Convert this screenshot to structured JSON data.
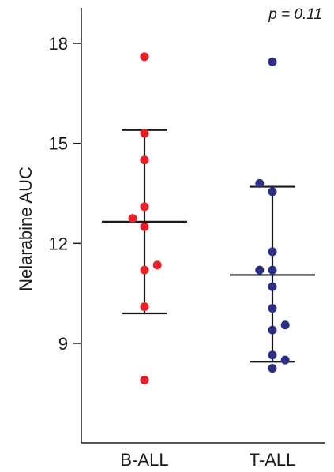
{
  "chart_data": {
    "type": "scatter",
    "title": "",
    "xlabel": "",
    "ylabel": "Nelarabine AUC",
    "ylim": [
      6.5,
      19.0
    ],
    "yticks": [
      9,
      12,
      15,
      18
    ],
    "ytick_labels": [
      "9",
      "12",
      "15",
      "18"
    ],
    "categories": [
      "B-ALL",
      "T-ALL"
    ],
    "annotation": "p = 0.11",
    "grid": false,
    "legend": "none",
    "series": [
      {
        "category": "B-ALL",
        "color": "#e8202a",
        "points": [
          {
            "x": 0.0,
            "y": 17.6
          },
          {
            "x": 0.0,
            "y": 15.3
          },
          {
            "x": 0.0,
            "y": 14.5
          },
          {
            "x": 0.0,
            "y": 13.1
          },
          {
            "x": -0.25,
            "y": 12.75
          },
          {
            "x": 0.0,
            "y": 12.5
          },
          {
            "x": 0.27,
            "y": 11.35
          },
          {
            "x": 0.0,
            "y": 11.2
          },
          {
            "x": 0.0,
            "y": 10.1
          },
          {
            "x": 0.0,
            "y": 7.9
          }
        ],
        "mean": 12.65,
        "sd_low": 9.9,
        "sd_high": 15.4
      },
      {
        "category": "T-ALL",
        "color": "#2b2f86",
        "points": [
          {
            "x": 0.0,
            "y": 17.45
          },
          {
            "x": -0.27,
            "y": 13.8
          },
          {
            "x": 0.0,
            "y": 13.55
          },
          {
            "x": 0.0,
            "y": 11.75
          },
          {
            "x": -0.27,
            "y": 11.2
          },
          {
            "x": 0.0,
            "y": 11.2
          },
          {
            "x": 0.0,
            "y": 10.7
          },
          {
            "x": 0.0,
            "y": 10.05
          },
          {
            "x": 0.27,
            "y": 9.55
          },
          {
            "x": 0.0,
            "y": 9.4
          },
          {
            "x": 0.0,
            "y": 8.65
          },
          {
            "x": 0.27,
            "y": 8.5
          },
          {
            "x": 0.0,
            "y": 8.25
          }
        ],
        "mean": 11.05,
        "sd_low": 8.45,
        "sd_high": 13.7
      }
    ]
  }
}
